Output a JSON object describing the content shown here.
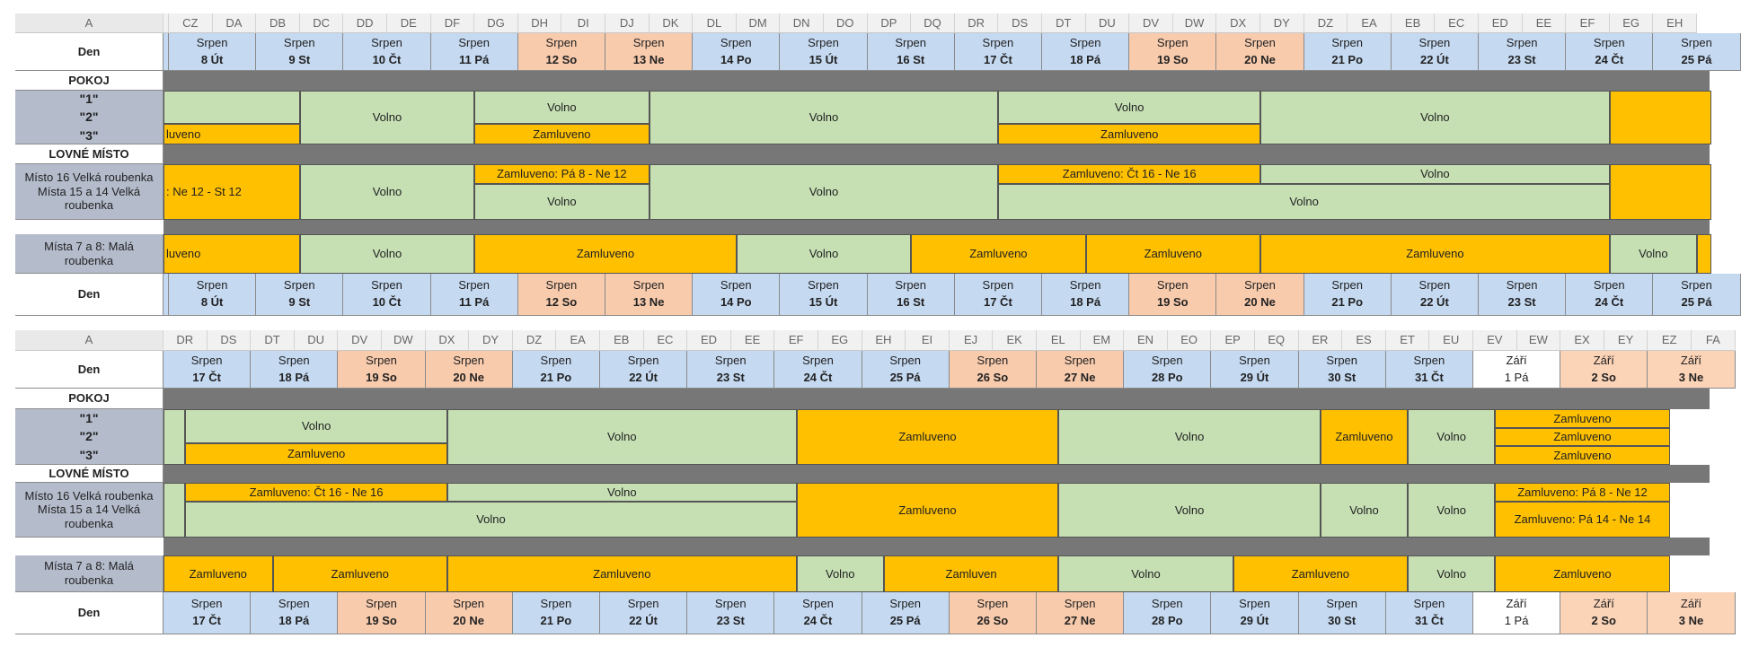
{
  "panels": [
    {
      "columns": [
        "A",
        "CZ",
        "DA",
        "DB",
        "DC",
        "DD",
        "DE",
        "DF",
        "DG",
        "DH",
        "DI",
        "DJ",
        "DK",
        "DL",
        "DM",
        "DN",
        "DO",
        "DP",
        "DQ",
        "DR",
        "DS",
        "DT",
        "DU",
        "DV",
        "DW",
        "DX",
        "DY",
        "DZ",
        "EA",
        "EB",
        "EC",
        "ED",
        "EE",
        "EF",
        "EG",
        "EH"
      ],
      "labels": {
        "den": "Den",
        "pokoj": "POKOJ",
        "rooms": [
          "\"1\"",
          "\"2\"",
          "\"3\""
        ],
        "lovne": "LOVNÉ MÍSTO",
        "misto16": "Místo 16 Velká roubenka",
        "mista15a": "Místa 15 a 14 Velká",
        "mista15b": "roubenka",
        "mista7a": "Místa 7 a 8: Malá",
        "mista7b": "roubenka"
      },
      "dates": [
        {
          "month": "Srpen",
          "day": "8 Út",
          "type": "wd"
        },
        {
          "month": "Srpen",
          "day": "9 St",
          "type": "wd"
        },
        {
          "month": "Srpen",
          "day": "10 Čt",
          "type": "wd"
        },
        {
          "month": "Srpen",
          "day": "11 Pá",
          "type": "wd"
        },
        {
          "month": "Srpen",
          "day": "12 So",
          "type": "we"
        },
        {
          "month": "Srpen",
          "day": "13 Ne",
          "type": "we"
        },
        {
          "month": "Srpen",
          "day": "14 Po",
          "type": "wd"
        },
        {
          "month": "Srpen",
          "day": "15 Út",
          "type": "wd"
        },
        {
          "month": "Srpen",
          "day": "16 St",
          "type": "wd"
        },
        {
          "month": "Srpen",
          "day": "17 Čt",
          "type": "wd"
        },
        {
          "month": "Srpen",
          "day": "18 Pá",
          "type": "wd"
        },
        {
          "month": "Srpen",
          "day": "19 So",
          "type": "we"
        },
        {
          "month": "Srpen",
          "day": "20 Ne",
          "type": "we"
        },
        {
          "month": "Srpen",
          "day": "21 Po",
          "type": "wd"
        },
        {
          "month": "Srpen",
          "day": "22 Út",
          "type": "wd"
        },
        {
          "month": "Srpen",
          "day": "23 St",
          "type": "wd"
        },
        {
          "month": "Srpen",
          "day": "24 Čt",
          "type": "wd"
        },
        {
          "month": "Srpen",
          "day": "25 Pá",
          "type": "wd"
        }
      ],
      "bookings": [
        {
          "row": "r123",
          "rs": 0,
          "re": 0.62,
          "d0": -1,
          "d1": 1.5,
          "status": "free",
          "text": ""
        },
        {
          "row": "r123",
          "rs": 0.62,
          "re": 1,
          "d0": -1,
          "d1": 1.5,
          "status": "res",
          "text": "luveno",
          "align": "l"
        },
        {
          "row": "r123",
          "d0": 1.5,
          "d1": 3.5,
          "status": "free",
          "text": "Volno"
        },
        {
          "row": "r123",
          "rs": 0,
          "re": 0.62,
          "d0": 3.5,
          "d1": 5.5,
          "status": "free",
          "text": "Volno"
        },
        {
          "row": "r123",
          "rs": 0.62,
          "re": 1,
          "d0": 3.5,
          "d1": 5.5,
          "status": "res",
          "text": "Zamluveno"
        },
        {
          "row": "r123",
          "d0": 5.5,
          "d1": 9.5,
          "status": "free",
          "text": "Volno"
        },
        {
          "row": "r123",
          "rs": 0,
          "re": 0.62,
          "d0": 9.5,
          "d1": 12.5,
          "status": "free",
          "text": "Volno"
        },
        {
          "row": "r123",
          "rs": 0.62,
          "re": 1,
          "d0": 9.5,
          "d1": 12.5,
          "status": "res",
          "text": "Zamluveno"
        },
        {
          "row": "r123",
          "d0": 12.5,
          "d1": 16.5,
          "status": "free",
          "text": "Volno"
        },
        {
          "row": "r123",
          "d0": 16.5,
          "d1": 19,
          "status": "res",
          "text": ""
        },
        {
          "row": "lov",
          "d0": -1,
          "d1": 1.5,
          "status": "res",
          "text": ": Ne 12 - St 12",
          "align": "l"
        },
        {
          "row": "lov",
          "d0": 1.5,
          "d1": 3.5,
          "status": "free",
          "text": "Volno"
        },
        {
          "row": "lov",
          "rs": 0,
          "re": 0.35,
          "d0": 3.5,
          "d1": 5.5,
          "status": "res",
          "text": "Zamluveno: Pá 8 - Ne 12"
        },
        {
          "row": "lov",
          "rs": 0.35,
          "re": 1,
          "d0": 3.5,
          "d1": 5.5,
          "status": "free",
          "text": "Volno"
        },
        {
          "row": "lov",
          "d0": 5.5,
          "d1": 9.5,
          "status": "free",
          "text": "Volno"
        },
        {
          "row": "lov",
          "rs": 0,
          "re": 0.35,
          "d0": 9.5,
          "d1": 12.5,
          "status": "res",
          "text": "Zamluveno: Čt 16 - Ne 16"
        },
        {
          "row": "lov",
          "rs": 0,
          "re": 0.35,
          "d0": 12.5,
          "d1": 16.5,
          "status": "free",
          "text": "Volno"
        },
        {
          "row": "lov",
          "rs": 0.35,
          "re": 1,
          "d0": 9.5,
          "d1": 16.5,
          "status": "free",
          "text": "Volno"
        },
        {
          "row": "lov",
          "d0": 16.5,
          "d1": 19,
          "status": "res",
          "text": ""
        },
        {
          "row": "mala",
          "d0": -1,
          "d1": 1.5,
          "status": "res",
          "text": "luveno",
          "align": "l"
        },
        {
          "row": "mala",
          "d0": 1.5,
          "d1": 3.5,
          "status": "free",
          "text": "Volno"
        },
        {
          "row": "mala",
          "d0": 3.5,
          "d1": 6.5,
          "status": "res",
          "text": "Zamluveno"
        },
        {
          "row": "mala",
          "d0": 6.5,
          "d1": 8.5,
          "status": "free",
          "text": "Volno"
        },
        {
          "row": "mala",
          "d0": 8.5,
          "d1": 10.5,
          "status": "res",
          "text": "Zamluveno"
        },
        {
          "row": "mala",
          "d0": 10.5,
          "d1": 12.5,
          "status": "res",
          "text": "Zamluveno"
        },
        {
          "row": "mala",
          "d0": 12.5,
          "d1": 16.5,
          "status": "res",
          "text": "Zamluveno"
        },
        {
          "row": "mala",
          "d0": 16.5,
          "d1": 17.5,
          "status": "free",
          "text": "Volno"
        },
        {
          "row": "mala",
          "d0": 17.5,
          "d1": 19,
          "status": "res",
          "text": ""
        }
      ]
    },
    {
      "columns": [
        "A",
        "DR",
        "DS",
        "DT",
        "DU",
        "DV",
        "DW",
        "DX",
        "DY",
        "DZ",
        "EA",
        "EB",
        "EC",
        "ED",
        "EE",
        "EF",
        "EG",
        "EH",
        "EI",
        "EJ",
        "EK",
        "EL",
        "EM",
        "EN",
        "EO",
        "EP",
        "EQ",
        "ER",
        "ES",
        "ET",
        "EU",
        "EV",
        "EW",
        "EX",
        "EY",
        "EZ",
        "FA"
      ],
      "labels": {
        "den": "Den",
        "pokoj": "POKOJ",
        "rooms": [
          "\"1\"",
          "\"2\"",
          "\"3\""
        ],
        "lovne": "LOVNÉ MÍSTO",
        "misto16": "Místo 16 Velká roubenka",
        "mista15a": "Místa 15 a 14 Velká",
        "mista15b": "roubenka",
        "mista7a": "Místa 7 a 8: Malá",
        "mista7b": "roubenka"
      },
      "dates": [
        {
          "month": "Srpen",
          "day": "17 Čt",
          "type": "wd"
        },
        {
          "month": "Srpen",
          "day": "18 Pá",
          "type": "wd"
        },
        {
          "month": "Srpen",
          "day": "19 So",
          "type": "we"
        },
        {
          "month": "Srpen",
          "day": "20 Ne",
          "type": "we"
        },
        {
          "month": "Srpen",
          "day": "21 Po",
          "type": "wd"
        },
        {
          "month": "Srpen",
          "day": "22 Út",
          "type": "wd"
        },
        {
          "month": "Srpen",
          "day": "23 St",
          "type": "wd"
        },
        {
          "month": "Srpen",
          "day": "24 Čt",
          "type": "wd"
        },
        {
          "month": "Srpen",
          "day": "25 Pá",
          "type": "wd"
        },
        {
          "month": "Srpen",
          "day": "26 So",
          "type": "we"
        },
        {
          "month": "Srpen",
          "day": "27 Ne",
          "type": "we"
        },
        {
          "month": "Srpen",
          "day": "28 Po",
          "type": "wd"
        },
        {
          "month": "Srpen",
          "day": "29 Út",
          "type": "wd"
        },
        {
          "month": "Srpen",
          "day": "30 St",
          "type": "wd"
        },
        {
          "month": "Srpen",
          "day": "31 Čt",
          "type": "wd"
        },
        {
          "month": "Září",
          "day": "1 Pá",
          "type": "wh"
        },
        {
          "month": "Září",
          "day": "2 So",
          "type": "mo"
        },
        {
          "month": "Září",
          "day": "3 Ne",
          "type": "mo"
        }
      ],
      "bookings": [
        {
          "row": "r123",
          "d0": -0.25,
          "d1": 0.25,
          "status": "free",
          "text": ""
        },
        {
          "row": "r123",
          "rs": 0,
          "re": 0.62,
          "d0": 0.25,
          "d1": 3.25,
          "status": "free",
          "text": "Volno"
        },
        {
          "row": "r123",
          "rs": 0.62,
          "re": 1,
          "d0": 0.25,
          "d1": 3.25,
          "status": "res",
          "text": "Zamluveno"
        },
        {
          "row": "r123",
          "d0": 3.25,
          "d1": 7.25,
          "status": "free",
          "text": "Volno"
        },
        {
          "row": "r123",
          "d0": 7.25,
          "d1": 10.25,
          "status": "res",
          "text": "Zamluveno"
        },
        {
          "row": "r123",
          "d0": 10.25,
          "d1": 13.25,
          "status": "free",
          "text": "Volno"
        },
        {
          "row": "r123",
          "d0": 13.25,
          "d1": 14.25,
          "status": "res",
          "text": "Zamluveno"
        },
        {
          "row": "r123",
          "d0": 14.25,
          "d1": 15.25,
          "status": "free",
          "text": "Volno"
        },
        {
          "row": "r123",
          "rs": 0,
          "re": 0.333,
          "d0": 15.25,
          "d1": 17.25,
          "status": "res",
          "text": "Zamluveno"
        },
        {
          "row": "r123",
          "rs": 0.333,
          "re": 0.667,
          "d0": 15.25,
          "d1": 17.25,
          "status": "res",
          "text": "Zamluveno"
        },
        {
          "row": "r123",
          "rs": 0.667,
          "re": 1,
          "d0": 15.25,
          "d1": 17.25,
          "status": "res",
          "text": "Zamluveno"
        },
        {
          "row": "lov",
          "d0": -0.25,
          "d1": 0.25,
          "status": "free",
          "text": ""
        },
        {
          "row": "lov",
          "rs": 0,
          "re": 0.35,
          "d0": 0.25,
          "d1": 3.25,
          "status": "res",
          "text": "Zamluveno: Čt 16 - Ne 16"
        },
        {
          "row": "lov",
          "rs": 0,
          "re": 0.35,
          "d0": 3.25,
          "d1": 7.25,
          "status": "free",
          "text": "Volno"
        },
        {
          "row": "lov",
          "rs": 0.35,
          "re": 1,
          "d0": 0.25,
          "d1": 7.25,
          "status": "free",
          "text": "Volno"
        },
        {
          "row": "lov",
          "d0": 7.25,
          "d1": 10.25,
          "status": "res",
          "text": "Zamluveno"
        },
        {
          "row": "lov",
          "d0": 10.25,
          "d1": 13.25,
          "status": "free",
          "text": "Volno"
        },
        {
          "row": "lov",
          "d0": 13.25,
          "d1": 14.25,
          "status": "free",
          "text": "Volno"
        },
        {
          "row": "lov",
          "d0": 14.25,
          "d1": 15.25,
          "status": "free",
          "text": "Volno"
        },
        {
          "row": "lov",
          "rs": 0,
          "re": 0.35,
          "d0": 15.25,
          "d1": 17.25,
          "status": "res",
          "text": "Zamluveno: Pá 8 - Ne 12"
        },
        {
          "row": "lov",
          "rs": 0.35,
          "re": 1,
          "d0": 15.25,
          "d1": 17.25,
          "status": "res",
          "text": "Zamluveno: Pá 14 - Ne 14"
        },
        {
          "row": "mala",
          "d0": -0.25,
          "d1": 1.25,
          "status": "res",
          "text": "Zamluveno"
        },
        {
          "row": "mala",
          "d0": 1.25,
          "d1": 3.25,
          "status": "res",
          "text": "Zamluveno"
        },
        {
          "row": "mala",
          "d0": 3.25,
          "d1": 7.25,
          "status": "res",
          "text": "Zamluveno"
        },
        {
          "row": "mala",
          "d0": 7.25,
          "d1": 8.25,
          "status": "free",
          "text": "Volno"
        },
        {
          "row": "mala",
          "d0": 8.25,
          "d1": 10.25,
          "status": "res",
          "text": "Zamluven"
        },
        {
          "row": "mala",
          "d0": 10.25,
          "d1": 12.25,
          "status": "free",
          "text": "Volno"
        },
        {
          "row": "mala",
          "d0": 12.25,
          "d1": 14.25,
          "status": "res",
          "text": "Zamluveno"
        },
        {
          "row": "mala",
          "d0": 14.25,
          "d1": 15.25,
          "status": "free",
          "text": "Volno"
        },
        {
          "row": "mala",
          "d0": 15.25,
          "d1": 17.25,
          "status": "res",
          "text": "Zamluveno"
        }
      ]
    }
  ]
}
